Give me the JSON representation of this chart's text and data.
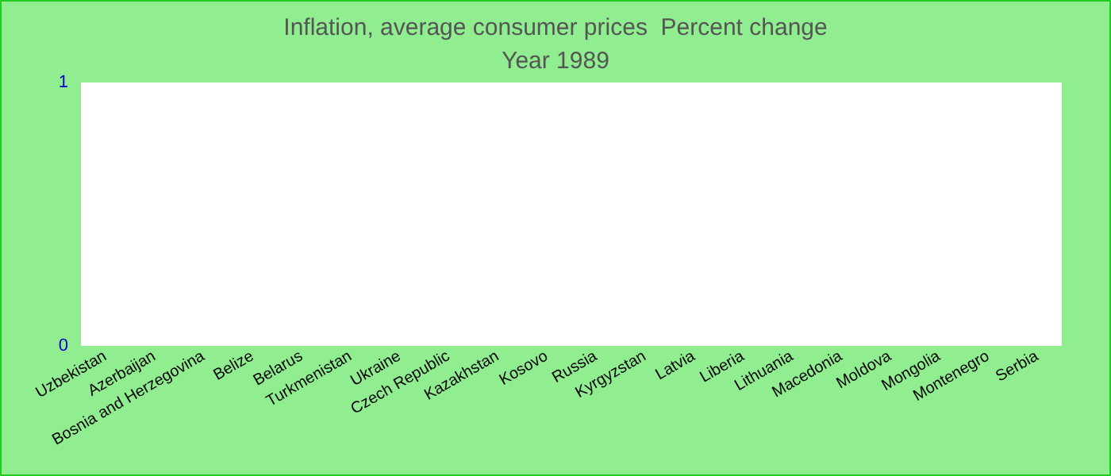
{
  "chart_data": {
    "type": "bar",
    "title": "Inflation, average consumer prices  Percent change",
    "subtitle": "Year 1989",
    "categories": [
      "Uzbekistan",
      "Azerbaijan",
      "Bosnia and Herzegovina",
      "Belize",
      "Belarus",
      "Turkmenistan",
      "Ukraine",
      "Czech Republic",
      "Kazakhstan",
      "Kosovo",
      "Russia",
      "Kyrgyzstan",
      "Latvia",
      "Liberia",
      "Lithuania",
      "Macedonia",
      "Moldova",
      "Mongolia",
      "Montenegro",
      "Serbia"
    ],
    "values": [
      0,
      0,
      0,
      0,
      0,
      0,
      0,
      0,
      0,
      0,
      0,
      0,
      0,
      0,
      0,
      0,
      0,
      0,
      0,
      0
    ],
    "ylim": [
      0,
      1
    ],
    "yticks": [
      0,
      1
    ],
    "grid": false
  }
}
